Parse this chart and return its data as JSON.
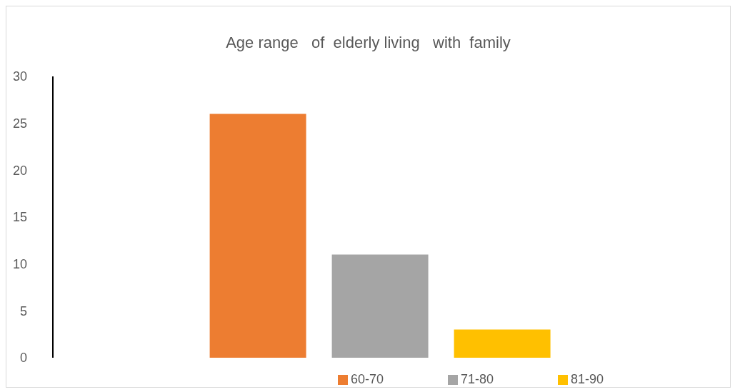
{
  "chart_data": {
    "type": "bar",
    "title": "Age range   of  elderly living   with  family",
    "categories": [
      null
    ],
    "series": [
      {
        "name": "60-70",
        "color": "#ed7d31",
        "values": [
          26
        ]
      },
      {
        "name": "71-80",
        "color": "#a5a5a5",
        "values": [
          11
        ]
      },
      {
        "name": "81-90",
        "color": "#ffc000",
        "values": [
          3
        ]
      }
    ],
    "ylim": [
      0,
      30
    ],
    "yticks": [
      0,
      5,
      10,
      15,
      20,
      25,
      30
    ],
    "grid": false,
    "legend": "bottom"
  }
}
